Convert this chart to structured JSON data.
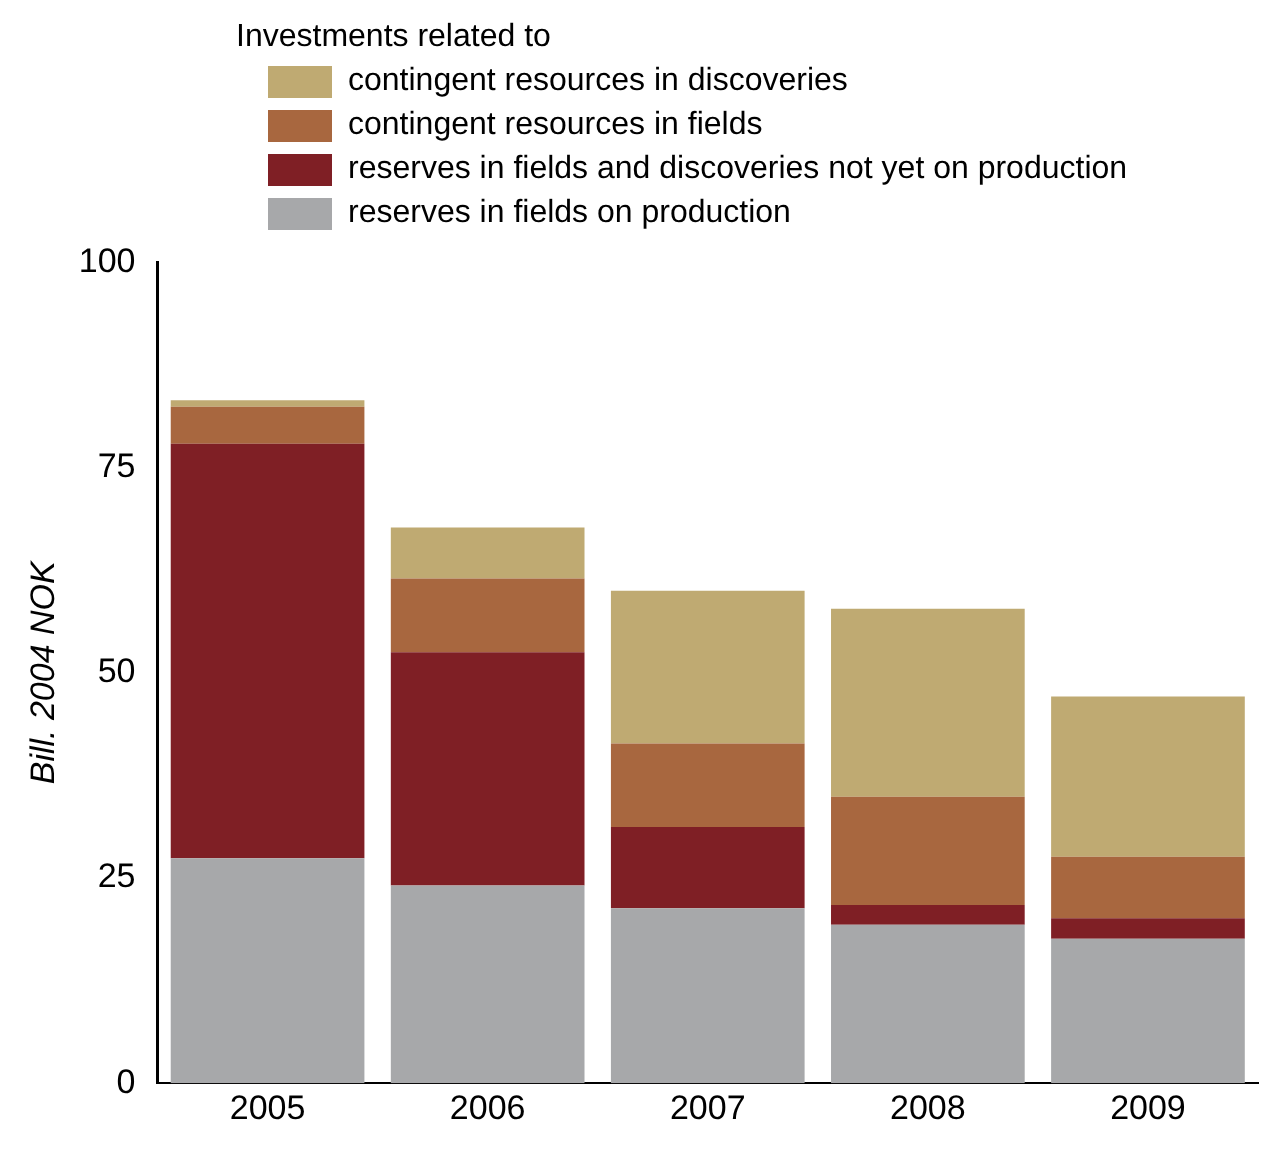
{
  "chart_data": {
    "type": "bar",
    "stacked": true,
    "legend_title": "Investments related to",
    "ylabel": "Bill. 2004 NOK",
    "categories": [
      "2005",
      "2006",
      "2007",
      "2008",
      "2009"
    ],
    "series": [
      {
        "name": "reserves in fields on production",
        "color": "#a7a8aa",
        "values": [
          27.4,
          24.1,
          21.3,
          19.3,
          17.6
        ]
      },
      {
        "name": "reserves in fields and discoveries not yet on production",
        "color": "#7f1f25",
        "values": [
          50.5,
          28.4,
          9.9,
          2.4,
          2.5
        ]
      },
      {
        "name": "contingent resources in fields",
        "color": "#a8673f",
        "values": [
          4.5,
          9.0,
          10.2,
          13.2,
          7.5
        ]
      },
      {
        "name": "contingent resources in discoveries",
        "color": "#bfaa72",
        "values": [
          0.8,
          6.2,
          18.6,
          22.9,
          19.5
        ]
      }
    ],
    "ylim": [
      0,
      100
    ],
    "yticks": [
      0,
      25,
      50,
      75,
      100
    ],
    "grid": false,
    "legend": "top"
  }
}
